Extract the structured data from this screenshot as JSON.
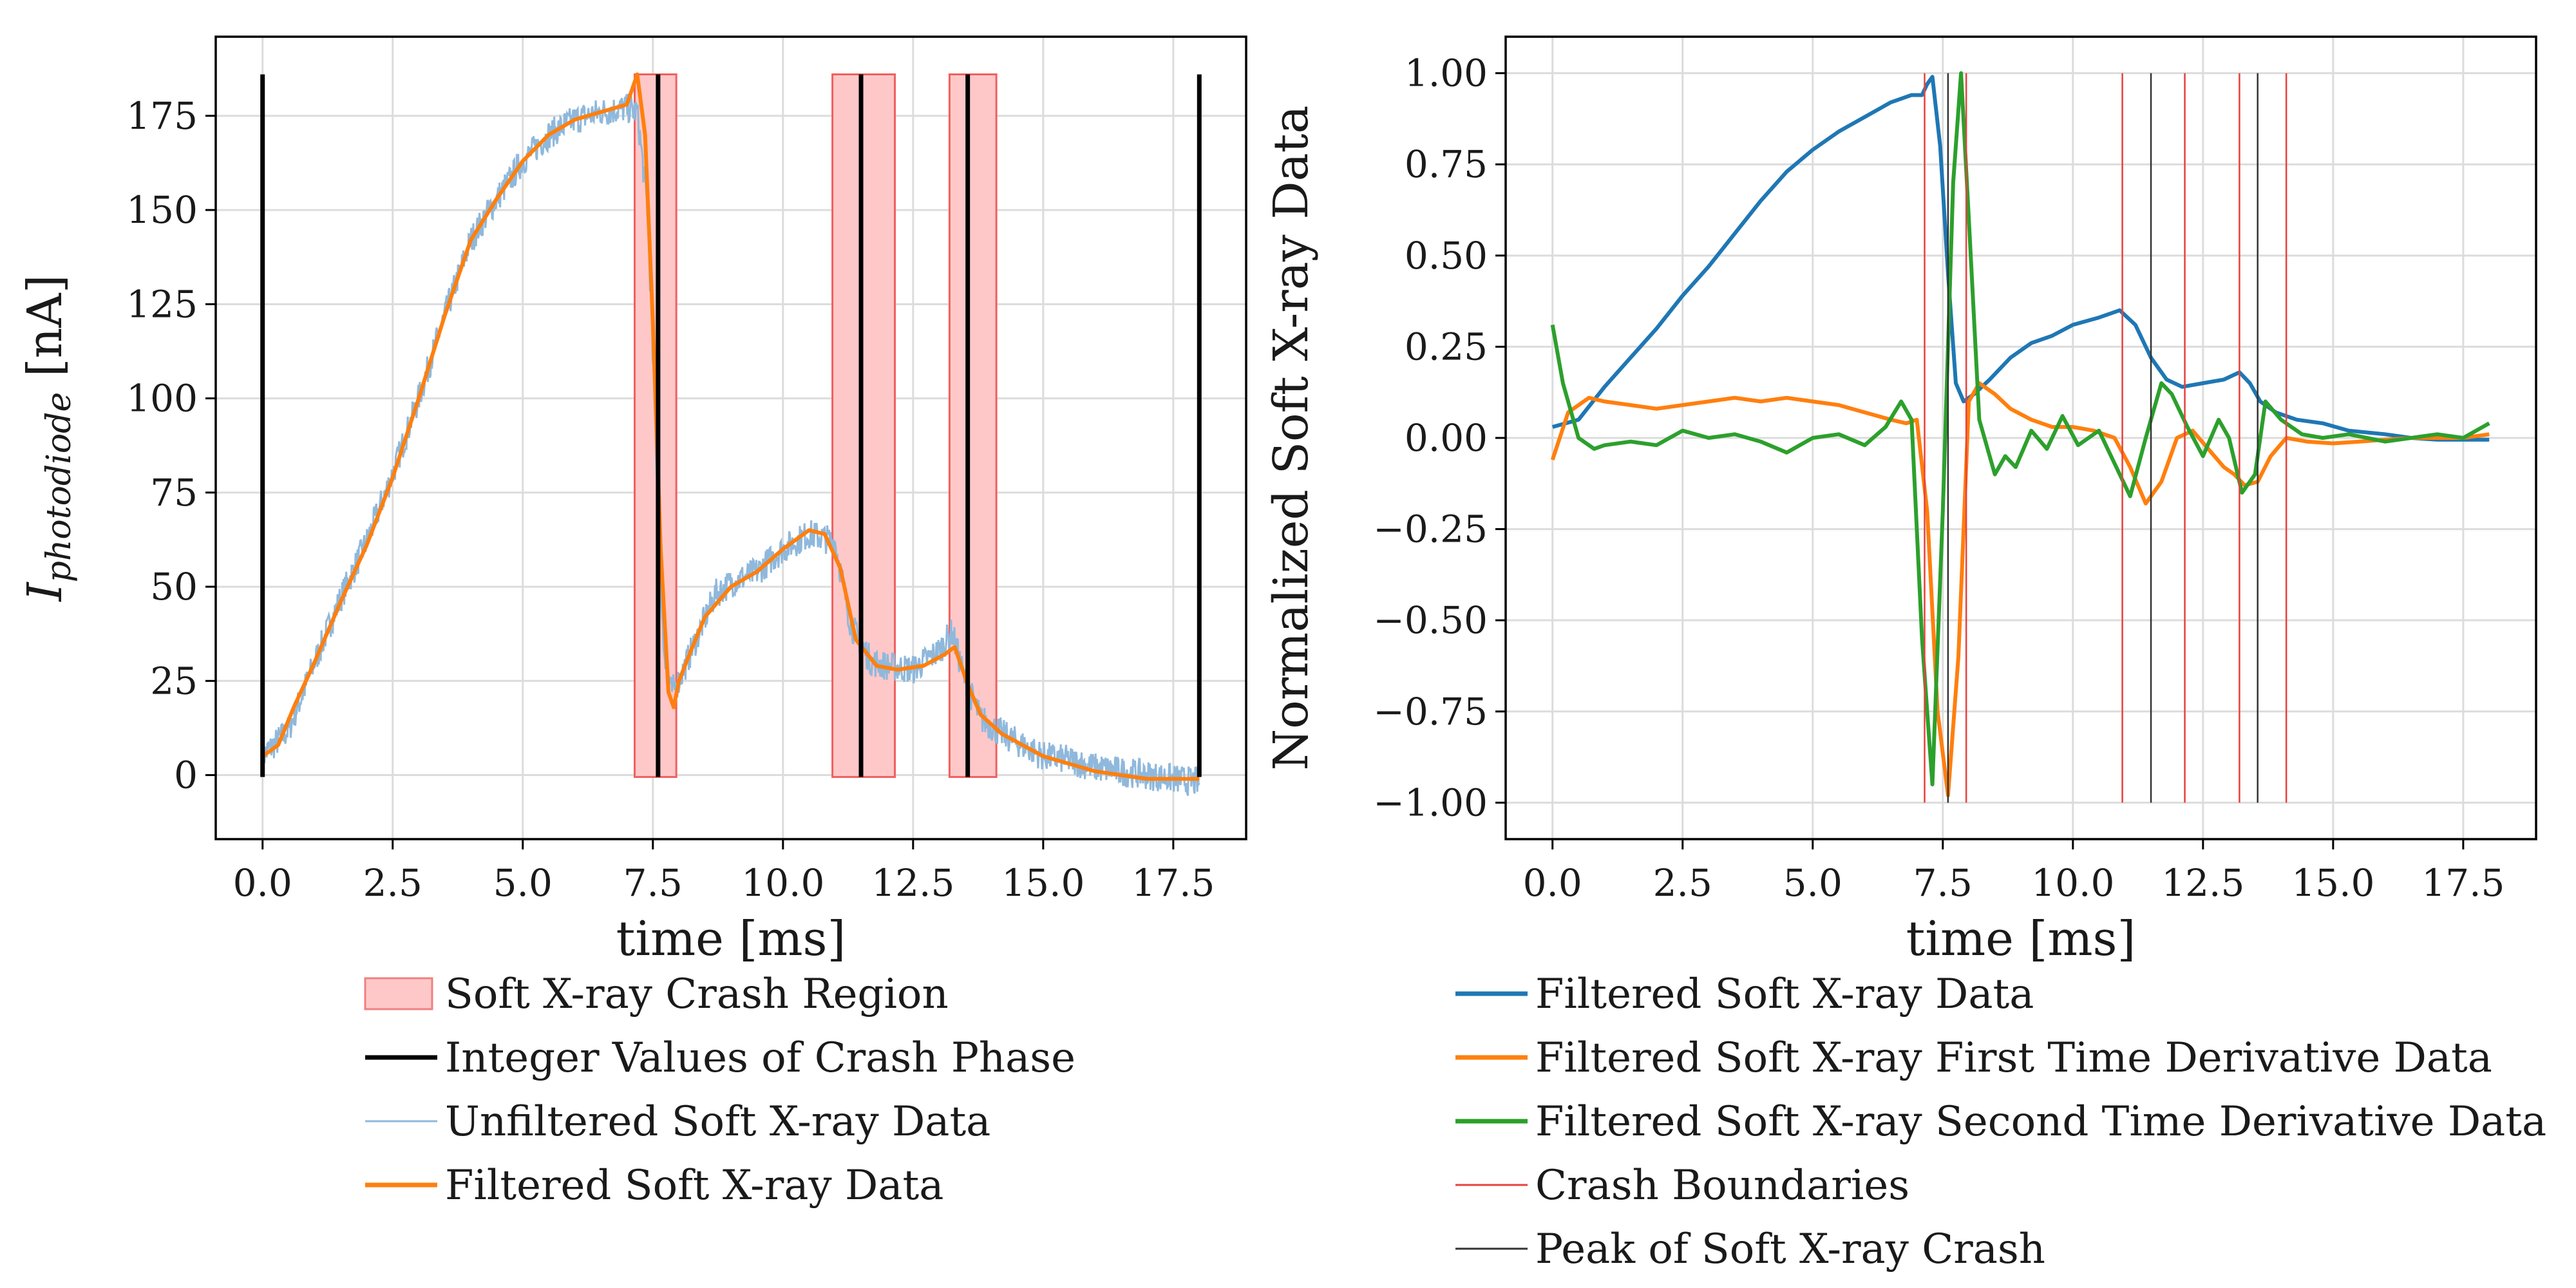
{
  "chart_data": [
    {
      "type": "line",
      "xlabel": "time [ms]",
      "ylabel": "I",
      "ylabel_sub": "photodiode",
      "ylabel_unit": " [nA]",
      "xlim": [
        -0.9,
        18.9
      ],
      "ylim": [
        -17,
        196
      ],
      "xticks": [
        0.0,
        2.5,
        5.0,
        7.5,
        10.0,
        12.5,
        15.0,
        17.5
      ],
      "xtick_labels": [
        "0.0",
        "2.5",
        "5.0",
        "7.5",
        "10.0",
        "12.5",
        "15.0",
        "17.5"
      ],
      "yticks": [
        0,
        25,
        50,
        75,
        100,
        125,
        150,
        175
      ],
      "ytick_labels": [
        "0",
        "25",
        "50",
        "75",
        "100",
        "125",
        "150",
        "175"
      ],
      "grid": true,
      "legend_position": "below",
      "regions": [
        {
          "x0": 7.15,
          "x1": 7.95,
          "y0": -0.5,
          "y1": 186
        },
        {
          "x0": 10.95,
          "x1": 12.15,
          "y0": -0.5,
          "y1": 186
        },
        {
          "x0": 13.2,
          "x1": 14.1,
          "y0": -0.5,
          "y1": 186
        }
      ],
      "vlines": [
        0.0,
        7.6,
        11.5,
        13.55,
        18.0
      ],
      "vline_range": [
        -0.5,
        186
      ],
      "series": [
        {
          "name": "Unfiltered Soft X-ray Data",
          "color": "#8fb8dc",
          "x": [
            0,
            0.5,
            1,
            1.5,
            2,
            2.5,
            3,
            3.5,
            4,
            4.5,
            5,
            5.5,
            6,
            6.5,
            7,
            7.2,
            7.4,
            7.55,
            7.7,
            7.85,
            8,
            8.3,
            8.7,
            9,
            9.5,
            10,
            10.5,
            11,
            11.3,
            11.7,
            12,
            12.5,
            13,
            13.25,
            13.5,
            13.8,
            14.2,
            14.6,
            15,
            15.5,
            16,
            16.5,
            17,
            17.5,
            18
          ],
          "y": [
            5,
            12,
            30,
            47,
            62,
            80,
            100,
            122,
            142,
            153,
            163,
            170,
            174,
            176,
            177,
            176,
            150,
            90,
            35,
            22,
            25,
            35,
            48,
            51,
            54,
            60,
            64,
            62,
            40,
            30,
            29,
            28,
            33,
            38,
            25,
            15,
            11,
            8,
            5,
            4,
            2,
            1,
            0,
            -1,
            -2
          ],
          "spread": 4
        },
        {
          "name": "Filtered Soft X-ray Data",
          "color": "#ff7f0e",
          "x": [
            0,
            0.3,
            0.6,
            1,
            1.5,
            2,
            2.5,
            3,
            3.5,
            4,
            4.5,
            5,
            5.5,
            6,
            6.5,
            7,
            7.2,
            7.35,
            7.5,
            7.65,
            7.8,
            7.9,
            8,
            8.2,
            8.5,
            9,
            9.5,
            10,
            10.5,
            10.8,
            11.1,
            11.4,
            11.8,
            12.2,
            12.7,
            13.1,
            13.3,
            13.55,
            13.8,
            14.2,
            14.6,
            15,
            15.5,
            16,
            16.5,
            17,
            17.5,
            18
          ],
          "y": [
            5,
            8,
            18,
            30,
            46,
            61,
            79,
            100,
            122,
            142,
            153,
            163,
            170,
            174,
            176,
            178,
            186,
            170,
            120,
            60,
            22,
            18,
            25,
            32,
            42,
            50,
            54,
            60,
            65,
            64,
            55,
            36,
            29,
            28,
            29,
            32,
            34,
            24,
            16,
            11,
            8,
            5,
            3,
            1,
            0,
            -1,
            -1,
            -1
          ]
        }
      ]
    },
    {
      "type": "line",
      "xlabel": "time [ms]",
      "ylabel": "Normalized Soft X-ray Data",
      "xlim": [
        -0.9,
        18.9
      ],
      "ylim": [
        -1.1,
        1.1
      ],
      "xticks": [
        0.0,
        2.5,
        5.0,
        7.5,
        10.0,
        12.5,
        15.0,
        17.5
      ],
      "xtick_labels": [
        "0.0",
        "2.5",
        "5.0",
        "7.5",
        "10.0",
        "12.5",
        "15.0",
        "17.5"
      ],
      "yticks": [
        1.0,
        0.75,
        0.5,
        0.25,
        0.0,
        -0.25,
        -0.5,
        -0.75,
        -1.0
      ],
      "ytick_labels": [
        "1.00",
        "0.75",
        "0.50",
        "0.25",
        "0.00",
        "−0.25",
        "−0.50",
        "−0.75",
        "−1.00"
      ],
      "grid": true,
      "legend_position": "below",
      "vline_range": [
        -1.0,
        1.0
      ],
      "boundary_lines": [
        7.15,
        7.95,
        10.95,
        12.15,
        13.2,
        14.1
      ],
      "boundary_color": "#e8413c",
      "peak_lines": [
        7.6,
        11.5,
        13.55
      ],
      "peak_color": "#333333",
      "series": [
        {
          "name": "Filtered Soft X-ray Data",
          "color": "#1f77b4",
          "x": [
            0,
            0.5,
            1,
            1.5,
            2,
            2.5,
            3,
            3.5,
            4,
            4.5,
            5,
            5.5,
            6,
            6.5,
            6.9,
            7.1,
            7.2,
            7.3,
            7.45,
            7.6,
            7.75,
            7.9,
            8.1,
            8.4,
            8.8,
            9.2,
            9.6,
            10,
            10.5,
            10.9,
            11.2,
            11.5,
            11.8,
            12.1,
            12.5,
            12.9,
            13.2,
            13.4,
            13.6,
            13.9,
            14.3,
            14.8,
            15.3,
            16,
            16.5,
            17,
            17.5,
            18
          ],
          "y": [
            0.03,
            0.05,
            0.14,
            0.22,
            0.3,
            0.39,
            0.47,
            0.56,
            0.65,
            0.73,
            0.79,
            0.84,
            0.88,
            0.92,
            0.94,
            0.94,
            0.97,
            0.99,
            0.8,
            0.45,
            0.15,
            0.1,
            0.12,
            0.16,
            0.22,
            0.26,
            0.28,
            0.31,
            0.33,
            0.35,
            0.31,
            0.22,
            0.16,
            0.14,
            0.15,
            0.16,
            0.18,
            0.15,
            0.1,
            0.07,
            0.05,
            0.04,
            0.02,
            0.01,
            0.0,
            -0.005,
            -0.005,
            -0.005
          ]
        },
        {
          "name": "Filtered Soft X-ray First Time Derivative Data",
          "color": "#ff7f0e",
          "x": [
            0,
            0.3,
            0.7,
            1,
            1.5,
            2,
            2.5,
            3,
            3.5,
            4,
            4.5,
            5,
            5.5,
            6,
            6.5,
            6.8,
            7.0,
            7.2,
            7.4,
            7.6,
            7.8,
            8.0,
            8.2,
            8.5,
            8.8,
            9.2,
            9.6,
            10,
            10.4,
            10.8,
            11.1,
            11.4,
            11.7,
            12.0,
            12.3,
            12.6,
            12.9,
            13.1,
            13.3,
            13.55,
            13.8,
            14.1,
            14.5,
            15,
            15.5,
            16,
            16.5,
            17,
            17.5,
            18
          ],
          "y": [
            -0.06,
            0.07,
            0.11,
            0.1,
            0.09,
            0.08,
            0.09,
            0.1,
            0.11,
            0.1,
            0.11,
            0.1,
            0.09,
            0.07,
            0.05,
            0.04,
            0.05,
            -0.2,
            -0.75,
            -0.98,
            -0.6,
            0.1,
            0.15,
            0.12,
            0.08,
            0.05,
            0.03,
            0.03,
            0.02,
            0.0,
            -0.08,
            -0.18,
            -0.12,
            0.0,
            0.02,
            -0.03,
            -0.08,
            -0.1,
            -0.13,
            -0.12,
            -0.05,
            0.0,
            -0.01,
            -0.015,
            -0.01,
            -0.005,
            0.0,
            0.0,
            0.0,
            0.01
          ]
        },
        {
          "name": "Filtered Soft X-ray Second Time Derivative Data",
          "color": "#2ca02c",
          "x": [
            0,
            0.2,
            0.5,
            0.8,
            1,
            1.5,
            2,
            2.5,
            3,
            3.5,
            4,
            4.5,
            5,
            5.5,
            6,
            6.4,
            6.7,
            6.9,
            7.1,
            7.3,
            7.5,
            7.7,
            7.85,
            8.0,
            8.2,
            8.5,
            8.7,
            8.9,
            9.2,
            9.5,
            9.8,
            10.1,
            10.5,
            10.9,
            11.1,
            11.4,
            11.7,
            11.9,
            12.2,
            12.5,
            12.8,
            13.0,
            13.25,
            13.5,
            13.7,
            14.0,
            14.4,
            14.8,
            15.3,
            16,
            16.5,
            17,
            17.5,
            18
          ],
          "y": [
            0.31,
            0.15,
            0.0,
            -0.03,
            -0.02,
            -0.01,
            -0.02,
            0.02,
            0.0,
            0.01,
            -0.01,
            -0.04,
            0.0,
            0.01,
            -0.02,
            0.03,
            0.1,
            0.05,
            -0.55,
            -0.95,
            -0.2,
            0.7,
            1.0,
            0.6,
            0.05,
            -0.1,
            -0.05,
            -0.08,
            0.02,
            -0.03,
            0.06,
            -0.02,
            0.02,
            -0.1,
            -0.16,
            0.0,
            0.15,
            0.12,
            0.03,
            -0.05,
            0.05,
            0.0,
            -0.15,
            -0.1,
            0.1,
            0.05,
            0.01,
            0.0,
            0.01,
            -0.01,
            0.0,
            0.01,
            0.0,
            0.04
          ]
        }
      ]
    }
  ],
  "legends": {
    "left": [
      {
        "label": "Soft X-ray Crash Region",
        "kind": "patch",
        "color": "#ffc8c8"
      },
      {
        "label": "Integer Values of Crash Phase",
        "kind": "line",
        "color": "#000000"
      },
      {
        "label": "Unfiltered Soft X-ray Data",
        "kind": "thinline",
        "color": "#8fb8dc"
      },
      {
        "label": "Filtered Soft X-ray Data",
        "kind": "line",
        "color": "#ff7f0e"
      }
    ],
    "right": [
      {
        "label": "Filtered Soft X-ray Data",
        "kind": "line",
        "color": "#1f77b4"
      },
      {
        "label": "Filtered Soft X-ray First Time Derivative Data",
        "kind": "line",
        "color": "#ff7f0e"
      },
      {
        "label": "Filtered Soft X-ray Second Time Derivative Data",
        "kind": "line",
        "color": "#2ca02c"
      },
      {
        "label": "Crash Boundaries",
        "kind": "thinline",
        "color": "#e8413c"
      },
      {
        "label": "Peak of Soft X-ray Crash",
        "kind": "thinline",
        "color": "#333333"
      }
    ]
  }
}
